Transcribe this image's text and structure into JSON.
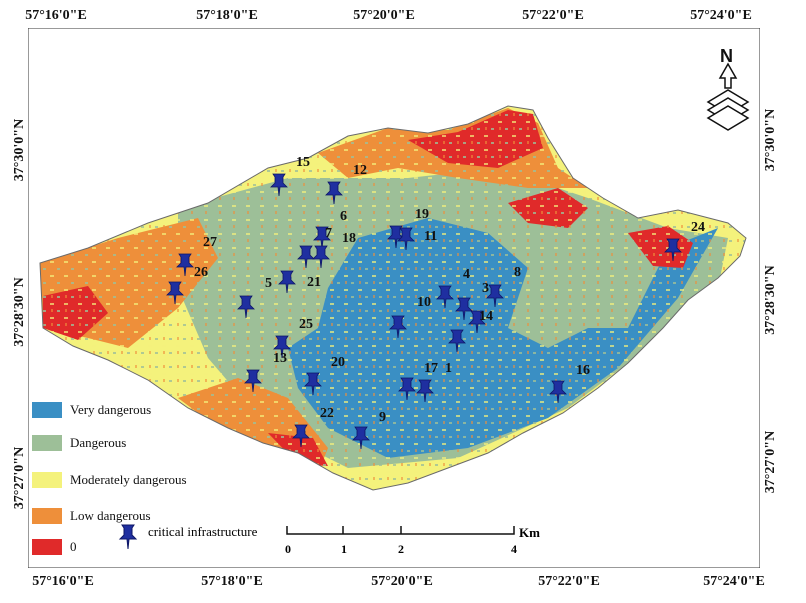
{
  "map": {
    "coords_top": [
      "57°16'0\"E",
      "57°18'0\"E",
      "57°20'0\"E",
      "57°22'0\"E",
      "57°24'0\"E"
    ],
    "coords_bottom": [
      "57°16'0\"E",
      "57°18'0\"E",
      "57°20'0\"E",
      "57°22'0\"E",
      "57°24'0\"E"
    ],
    "coords_left": [
      "37°30'0\"N",
      "37°28'30\"N",
      "37°27'0\"N"
    ],
    "coords_right": [
      "37°30'0\"N",
      "37°28'30\"N",
      "37°27'0\"N"
    ],
    "north_label": "N",
    "colors": {
      "very_dangerous": "#3a8fc4",
      "dangerous": "#9dbf98",
      "moderately_dangerous": "#f4f27c",
      "low_dangerous": "#ee8f3a",
      "zero": "#e02a2a",
      "marker": "#1f2fa0"
    },
    "legend": [
      {
        "label": "Very dangerous",
        "color": "#3a8fc4"
      },
      {
        "label": "Dangerous",
        "color": "#9dbf98"
      },
      {
        "label": "Moderately dangerous",
        "color": "#f4f27c"
      },
      {
        "label": "Low dangerous",
        "color": "#ee8f3a"
      },
      {
        "label": "0",
        "color": "#e02a2a"
      }
    ],
    "infrastructure_legend": "critical infrastructure",
    "scale": {
      "unit": "Km",
      "ticks": [
        "0",
        "1",
        "2",
        "4"
      ]
    },
    "site_labels": [
      "1",
      "3",
      "4",
      "5",
      "6",
      "7",
      "8",
      "9",
      "10",
      "11",
      "12",
      "13",
      "14",
      "15",
      "16",
      "17",
      "18",
      "19",
      "20",
      "21",
      "22",
      "24",
      "25",
      "26",
      "27"
    ]
  }
}
